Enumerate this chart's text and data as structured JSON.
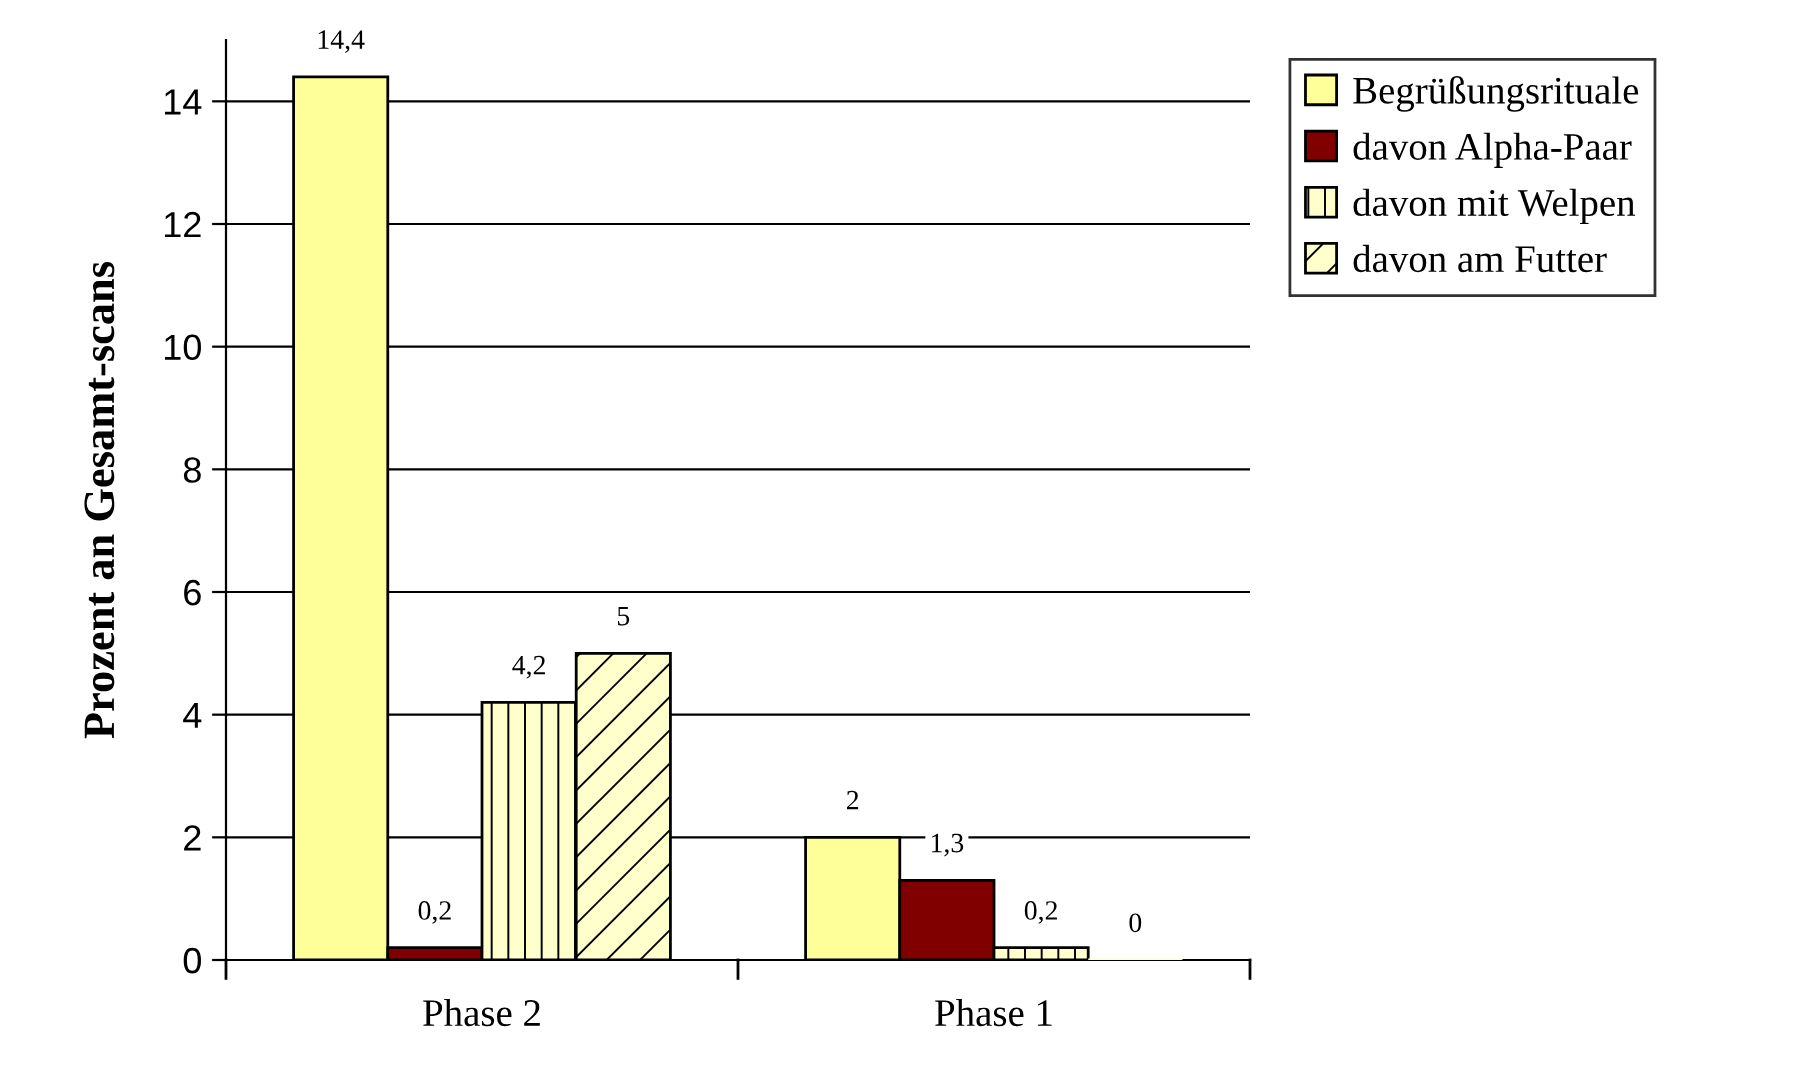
{
  "chart_data": {
    "type": "bar",
    "ylabel": "Prozent an Gesamt-scans",
    "categories": [
      "Phase 2",
      "Phase 1"
    ],
    "series": [
      {
        "name": "Begrüßungsrituale",
        "color": "#ffff99",
        "values": [
          14.4,
          2
        ],
        "value_labels": [
          "14,4",
          "2"
        ]
      },
      {
        "name": "davon Alpha-Paar",
        "color": "#800000",
        "values": [
          0.2,
          1.3
        ],
        "value_labels": [
          "0,2",
          "1,3"
        ]
      },
      {
        "name": "davon mit Welpen",
        "color": "#ffffcc",
        "values": [
          4.2,
          0.2
        ],
        "value_labels": [
          "4,2",
          "0,2"
        ]
      },
      {
        "name": "davon am Futter",
        "color": "#ffffcc",
        "values": [
          5,
          0
        ],
        "value_labels": [
          "5",
          "0"
        ]
      }
    ],
    "ylim": [
      0,
      15
    ],
    "yticks": [
      0,
      2,
      4,
      6,
      8,
      10,
      12,
      14
    ],
    "grid": "y",
    "legend": "top right"
  }
}
